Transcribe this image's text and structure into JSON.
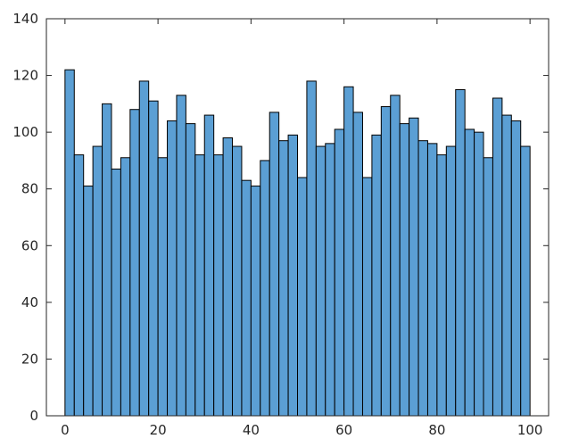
{
  "chart_data": {
    "type": "bar",
    "title": "",
    "xlabel": "",
    "ylabel": "",
    "xlim": [
      -4,
      104
    ],
    "ylim": [
      0,
      140
    ],
    "bin_width": 2,
    "bin_edges_start": 0,
    "x_ticks": [
      0,
      20,
      40,
      60,
      80,
      100
    ],
    "x_tick_labels": [
      "0",
      "20",
      "40",
      "60",
      "80",
      "100"
    ],
    "y_ticks": [
      0,
      20,
      40,
      60,
      80,
      100,
      120,
      140
    ],
    "y_tick_labels": [
      "0",
      "20",
      "40",
      "60",
      "80",
      "100",
      "120",
      "140"
    ],
    "values": [
      122,
      92,
      81,
      95,
      110,
      87,
      91,
      108,
      118,
      111,
      91,
      104,
      113,
      103,
      92,
      106,
      92,
      98,
      95,
      83,
      81,
      90,
      107,
      97,
      99,
      84,
      118,
      95,
      96,
      101,
      116,
      107,
      84,
      99,
      109,
      113,
      103,
      105,
      97,
      96,
      92,
      95,
      115,
      101,
      100,
      91,
      112,
      106,
      104,
      95
    ],
    "grid": false,
    "bar_color": "#5B9FD4",
    "edge_color": "#000000"
  }
}
